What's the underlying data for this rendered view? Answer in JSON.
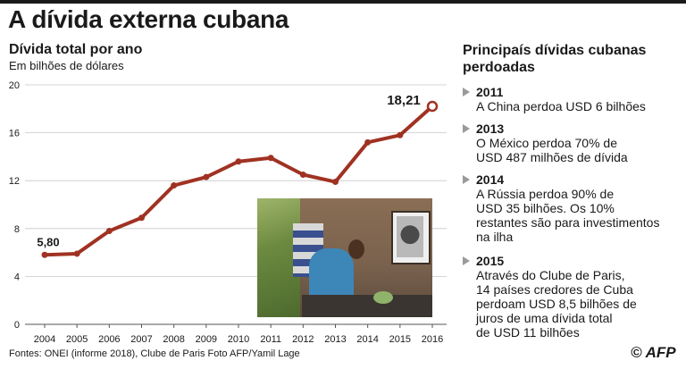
{
  "title": "A dívida externa cubana",
  "chart_title": "Dívida total por ano",
  "chart_subtitle": "Em bilhões de dólares",
  "chart_data": {
    "type": "line",
    "title": "Dívida total por ano",
    "ylabel": "Em bilhões de dólares",
    "xlabel": "",
    "x": [
      "2004",
      "2005",
      "2006",
      "2007",
      "2008",
      "2009",
      "2010",
      "2011",
      "2012",
      "2013",
      "2014",
      "2015",
      "2016"
    ],
    "series": [
      {
        "values": [
          5.8,
          5.9,
          7.8,
          8.9,
          11.6,
          12.3,
          13.6,
          13.9,
          12.5,
          11.9,
          15.2,
          15.8,
          18.21
        ]
      }
    ],
    "ylim": [
      0,
      20
    ],
    "yticks": [
      "0",
      "4",
      "8",
      "12",
      "16",
      "20"
    ],
    "data_labels": {
      "first": "5,80",
      "last": "18,21"
    },
    "grid": "horizontal",
    "line_color": "#a03222"
  },
  "right_title": "Principaís dívidas cubanas perdoadas",
  "entries": [
    {
      "year": "2011",
      "lines": [
        "A China perdoa USD 6 bilhões"
      ]
    },
    {
      "year": "2013",
      "lines": [
        "O México perdoa 70% de",
        "USD 487 milhões de dívida"
      ]
    },
    {
      "year": "2014",
      "lines": [
        "A Rússia perdoa 90% de",
        "USD 35 bilhões. Os 10%",
        "restantes são para investimentos",
        "na ilha"
      ]
    },
    {
      "year": "2015",
      "lines": [
        "Através do Clube de Paris,",
        "14 países credores de Cuba",
        "perdoam USD 8,5 bilhões de",
        "juros de uma dívida total",
        "de USD 11 bilhões"
      ]
    }
  ],
  "footer": "Fontes: ONEI (informe 2018), Clube de Paris   Foto AFP/Yamil Lage",
  "logo": "© AFP"
}
